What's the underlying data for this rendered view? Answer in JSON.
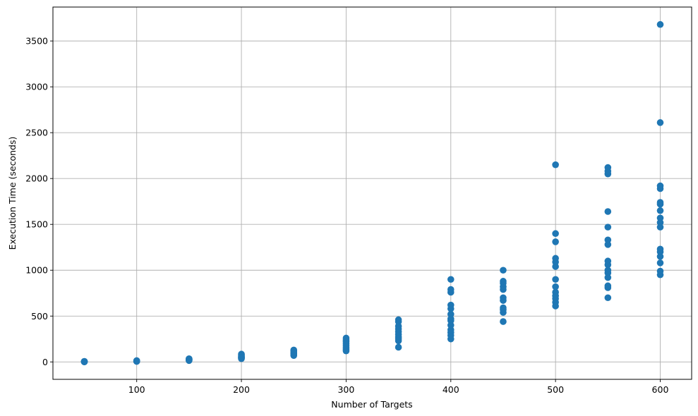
{
  "chart_data": {
    "type": "scatter",
    "title": "",
    "xlabel": "Number of Targets",
    "ylabel": "Execution Time (seconds)",
    "xlim": [
      20,
      630
    ],
    "ylim": [
      -190,
      3870
    ],
    "xticks": [
      100,
      200,
      300,
      400,
      500,
      600
    ],
    "yticks": [
      0,
      500,
      1000,
      1500,
      2000,
      2500,
      3000,
      3500
    ],
    "grid": true,
    "marker_color": "#1f77b4",
    "series": [
      {
        "points": [
          [
            50,
            0
          ],
          [
            50,
            1
          ],
          [
            50,
            2
          ],
          [
            50,
            3
          ],
          [
            50,
            4
          ],
          [
            50,
            5
          ],
          [
            50,
            6
          ],
          [
            50,
            3
          ],
          [
            100,
            5
          ],
          [
            100,
            8
          ],
          [
            100,
            10
          ],
          [
            100,
            12
          ],
          [
            100,
            14
          ],
          [
            100,
            9
          ],
          [
            150,
            15
          ],
          [
            150,
            20
          ],
          [
            150,
            25
          ],
          [
            150,
            30
          ],
          [
            150,
            35
          ],
          [
            150,
            22
          ],
          [
            200,
            35
          ],
          [
            200,
            45
          ],
          [
            200,
            55
          ],
          [
            200,
            65
          ],
          [
            200,
            75
          ],
          [
            200,
            85
          ],
          [
            200,
            50
          ],
          [
            250,
            70
          ],
          [
            250,
            80
          ],
          [
            250,
            90
          ],
          [
            250,
            100
          ],
          [
            250,
            110
          ],
          [
            250,
            120
          ],
          [
            250,
            130
          ],
          [
            300,
            120
          ],
          [
            300,
            140
          ],
          [
            300,
            160
          ],
          [
            300,
            180
          ],
          [
            300,
            200
          ],
          [
            300,
            220
          ],
          [
            300,
            240
          ],
          [
            300,
            260
          ],
          [
            350,
            160
          ],
          [
            350,
            230
          ],
          [
            350,
            250
          ],
          [
            350,
            270
          ],
          [
            350,
            300
          ],
          [
            350,
            330
          ],
          [
            350,
            360
          ],
          [
            350,
            390
          ],
          [
            350,
            440
          ],
          [
            350,
            460
          ],
          [
            400,
            250
          ],
          [
            400,
            290
          ],
          [
            400,
            320
          ],
          [
            400,
            350
          ],
          [
            400,
            400
          ],
          [
            400,
            450
          ],
          [
            400,
            470
          ],
          [
            400,
            520
          ],
          [
            400,
            580
          ],
          [
            400,
            620
          ],
          [
            400,
            760
          ],
          [
            400,
            790
          ],
          [
            400,
            900
          ],
          [
            450,
            440
          ],
          [
            450,
            540
          ],
          [
            450,
            570
          ],
          [
            450,
            590
          ],
          [
            450,
            670
          ],
          [
            450,
            700
          ],
          [
            450,
            790
          ],
          [
            450,
            820
          ],
          [
            450,
            860
          ],
          [
            450,
            880
          ],
          [
            450,
            1000
          ],
          [
            500,
            610
          ],
          [
            500,
            650
          ],
          [
            500,
            690
          ],
          [
            500,
            720
          ],
          [
            500,
            760
          ],
          [
            500,
            820
          ],
          [
            500,
            900
          ],
          [
            500,
            1040
          ],
          [
            500,
            1090
          ],
          [
            500,
            1130
          ],
          [
            500,
            1310
          ],
          [
            500,
            1400
          ],
          [
            500,
            2150
          ],
          [
            550,
            700
          ],
          [
            550,
            810
          ],
          [
            550,
            830
          ],
          [
            550,
            920
          ],
          [
            550,
            970
          ],
          [
            550,
            1000
          ],
          [
            550,
            1060
          ],
          [
            550,
            1100
          ],
          [
            550,
            1280
          ],
          [
            550,
            1330
          ],
          [
            550,
            1470
          ],
          [
            550,
            1640
          ],
          [
            550,
            2050
          ],
          [
            550,
            2080
          ],
          [
            550,
            2120
          ],
          [
            600,
            950
          ],
          [
            600,
            990
          ],
          [
            600,
            1080
          ],
          [
            600,
            1150
          ],
          [
            600,
            1200
          ],
          [
            600,
            1230
          ],
          [
            600,
            1470
          ],
          [
            600,
            1520
          ],
          [
            600,
            1570
          ],
          [
            600,
            1650
          ],
          [
            600,
            1720
          ],
          [
            600,
            1740
          ],
          [
            600,
            1890
          ],
          [
            600,
            1920
          ],
          [
            600,
            2610
          ],
          [
            600,
            3680
          ]
        ]
      }
    ]
  }
}
